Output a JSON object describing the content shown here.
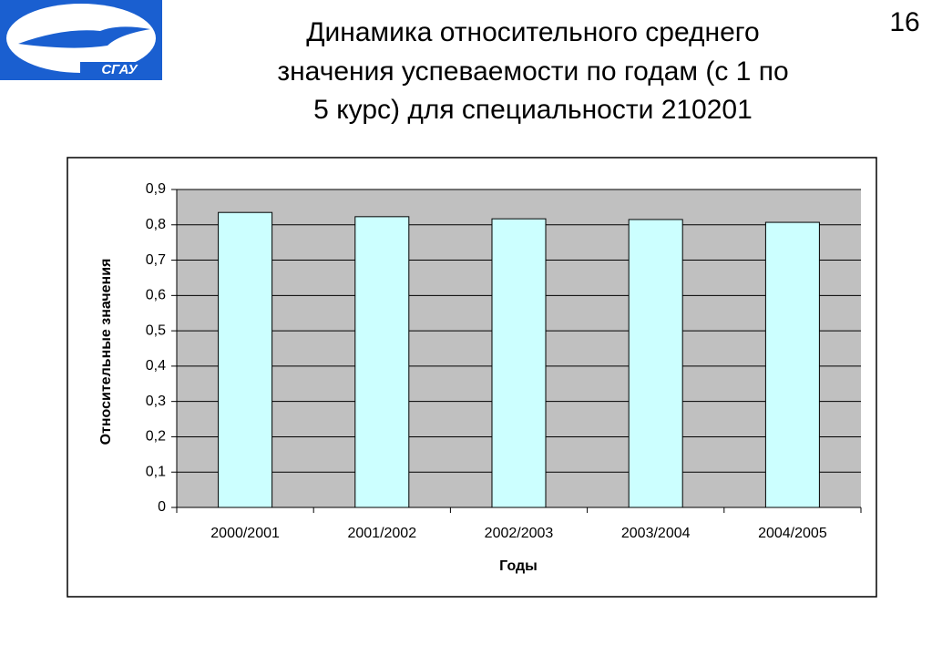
{
  "slide_number": "16",
  "title_lines": [
    "Динамика относительного среднего",
    "значения успеваемости по годам (с 1 по",
    "5 курс) для специальности 210201"
  ],
  "logo_text": "СГАУ",
  "chart_data": {
    "type": "bar",
    "x_label": "Годы",
    "y_label": "Относительные значения",
    "categories": [
      "2000/2001",
      "2001/2002",
      "2002/2003",
      "2003/2004",
      "2004/2005"
    ],
    "values": [
      0.835,
      0.823,
      0.817,
      0.815,
      0.807
    ],
    "color": "#ccffff",
    "ylim": [
      0,
      0.9
    ],
    "yticks": [
      0,
      {
        "value": 0.1,
        "label": "0,1"
      },
      {
        "value": 0.2,
        "label": "0,2"
      },
      {
        "value": 0.3,
        "label": "0,3"
      },
      {
        "value": 0.4,
        "label": "0,4"
      },
      {
        "value": 0.5,
        "label": "0,5"
      },
      {
        "value": 0.6,
        "label": "0,6"
      },
      {
        "value": 0.7,
        "label": "0,7"
      },
      {
        "value": 0.8,
        "label": "0,8"
      },
      {
        "value": 0.9,
        "label": "0,9"
      }
    ],
    "grid": true
  }
}
